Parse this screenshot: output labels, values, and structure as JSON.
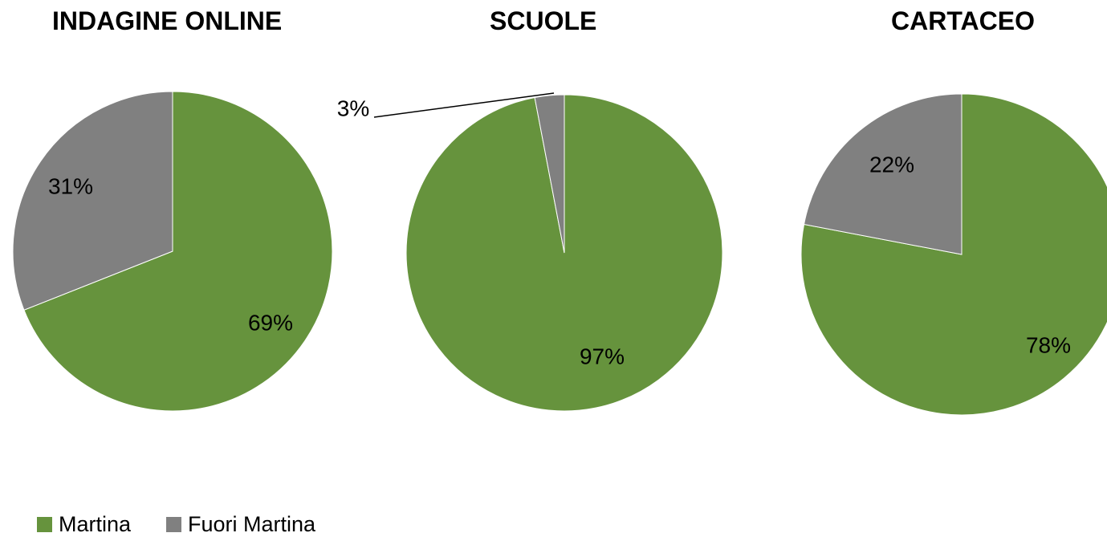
{
  "chart_data": [
    {
      "type": "pie",
      "title": "INDAGINE ONLINE",
      "categories": [
        "Martina",
        "Fuori Martina"
      ],
      "values": [
        69,
        31
      ],
      "labels": [
        "69%",
        "31%"
      ]
    },
    {
      "type": "pie",
      "title": "SCUOLE",
      "categories": [
        "Martina",
        "Fuori Martina"
      ],
      "values": [
        97,
        3
      ],
      "labels": [
        "97%",
        "3%"
      ]
    },
    {
      "type": "pie",
      "title": "CARTACEO",
      "categories": [
        "Martina",
        "Fuori Martina"
      ],
      "values": [
        78,
        22
      ],
      "labels": [
        "78%",
        "22%"
      ]
    }
  ],
  "legend": {
    "position": "bottom-left",
    "items": [
      {
        "label": "Martina",
        "color": "#66933d"
      },
      {
        "label": "Fuori Martina",
        "color": "#808080"
      }
    ]
  },
  "colors": {
    "martina": "#66933d",
    "fuori_martina": "#808080"
  }
}
